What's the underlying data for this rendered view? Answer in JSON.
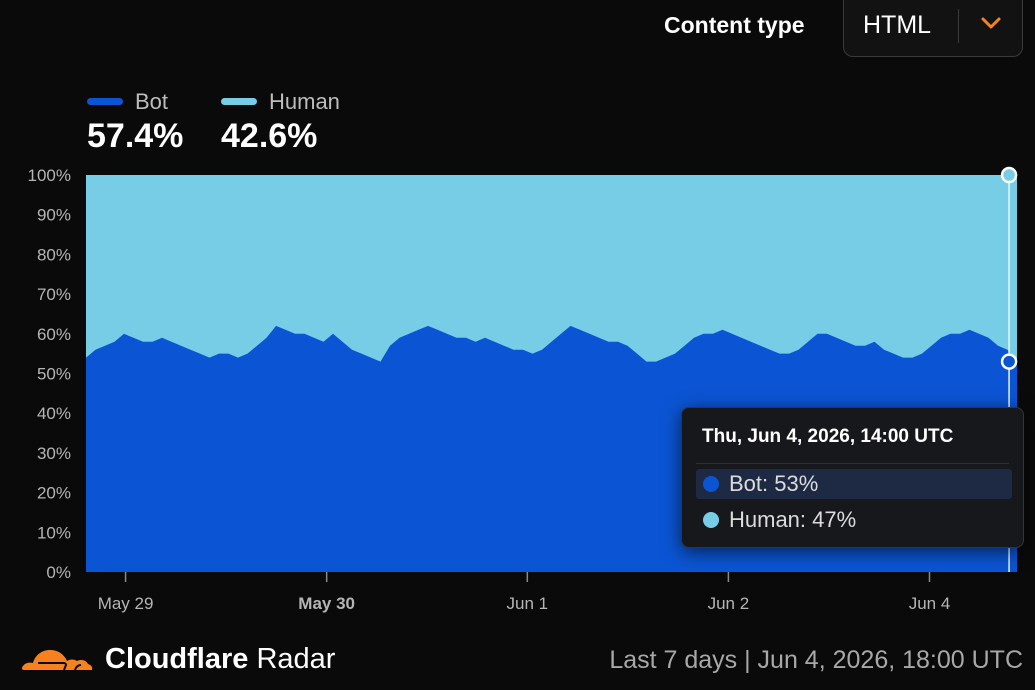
{
  "header": {
    "content_type_label": "Content type",
    "content_type_value": "HTML"
  },
  "legend": {
    "bot": {
      "name": "Bot",
      "percent": "57.4%"
    },
    "human": {
      "name": "Human",
      "percent": "42.6%"
    }
  },
  "tooltip": {
    "title": "Thu, Jun 4, 2026, 14:00 UTC",
    "bot": "Bot: 53%",
    "human": "Human: 47%"
  },
  "footer": {
    "brand_bold": "Cloudflare",
    "brand_rest": " Radar",
    "period": "Last 7 days  |  Jun 4, 2026, 18:00 UTC"
  },
  "colors": {
    "bot": "#0b55d4",
    "human": "#77cde6",
    "background": "#0a0a0a",
    "accent": "#f6821f"
  },
  "chart_data": {
    "type": "area",
    "stacked": true,
    "normalized": true,
    "x_tick_labels": [
      "May 29",
      "May 30",
      "Jun 1",
      "Jun 2",
      "Jun 4"
    ],
    "x_tick_bold": [
      false,
      true,
      false,
      false,
      false
    ],
    "y_tick_labels": [
      "0%",
      "10%",
      "20%",
      "30%",
      "40%",
      "50%",
      "60%",
      "70%",
      "80%",
      "90%",
      "100%"
    ],
    "ylim": [
      0,
      100
    ],
    "series": [
      {
        "name": "Bot",
        "color": "#0b55d4",
        "values": [
          54,
          56,
          57,
          58,
          60,
          59,
          58,
          58,
          59,
          58,
          57,
          56,
          55,
          54,
          55,
          55,
          54,
          55,
          57,
          59,
          62,
          61,
          60,
          60,
          59,
          58,
          60,
          58,
          56,
          55,
          54,
          53,
          57,
          59,
          60,
          61,
          62,
          61,
          60,
          59,
          59,
          58,
          59,
          58,
          57,
          56,
          56,
          55,
          56,
          58,
          60,
          62,
          61,
          60,
          59,
          58,
          58,
          57,
          55,
          53,
          53,
          54,
          55,
          57,
          59,
          60,
          60,
          61,
          60,
          59,
          58,
          57,
          56,
          55,
          55,
          56,
          58,
          60,
          60,
          59,
          58,
          57,
          57,
          58,
          56,
          55,
          54,
          54,
          55,
          57,
          59,
          60,
          60,
          61,
          60,
          59,
          57,
          56,
          53
        ]
      },
      {
        "name": "Human",
        "color": "#77cde6",
        "values": [
          46,
          44,
          43,
          42,
          40,
          41,
          42,
          42,
          41,
          42,
          43,
          44,
          45,
          46,
          45,
          45,
          46,
          45,
          43,
          41,
          38,
          39,
          40,
          40,
          41,
          42,
          40,
          42,
          44,
          45,
          46,
          47,
          43,
          41,
          40,
          39,
          38,
          39,
          40,
          41,
          41,
          42,
          41,
          42,
          43,
          44,
          44,
          45,
          44,
          42,
          40,
          38,
          39,
          40,
          41,
          42,
          42,
          43,
          45,
          47,
          47,
          46,
          45,
          43,
          41,
          40,
          40,
          39,
          40,
          41,
          42,
          43,
          44,
          45,
          45,
          44,
          42,
          40,
          40,
          41,
          42,
          43,
          43,
          42,
          44,
          45,
          46,
          46,
          45,
          43,
          41,
          40,
          40,
          39,
          40,
          41,
          43,
          44,
          47
        ]
      }
    ],
    "hover": {
      "label": "Thu, Jun 4, 2026, 14:00 UTC",
      "bot": 53,
      "human": 47
    }
  }
}
